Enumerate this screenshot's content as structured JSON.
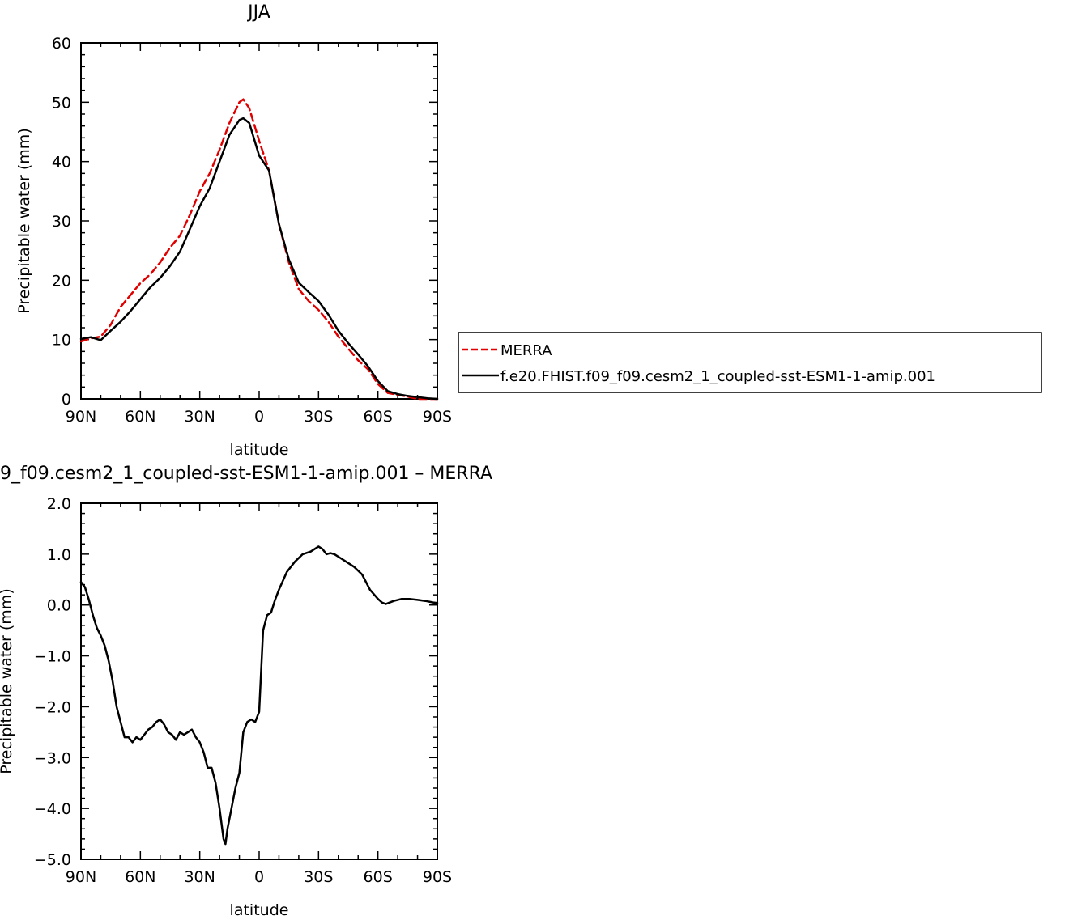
{
  "chart_data": [
    {
      "type": "line",
      "title": "JJA",
      "xlabel": "latitude",
      "ylabel": "Precipitable water (mm)",
      "xlim": [
        90,
        -90
      ],
      "ylim": [
        0,
        60
      ],
      "x_ticks": [
        90,
        60,
        30,
        0,
        -30,
        -60,
        -90
      ],
      "x_tick_labels": [
        "90N",
        "60N",
        "30N",
        "0",
        "30S",
        "60S",
        "90S"
      ],
      "y_ticks": [
        0,
        10,
        20,
        30,
        40,
        50,
        60
      ],
      "y_tick_labels": [
        "0",
        "10",
        "20",
        "30",
        "40",
        "50",
        "60"
      ],
      "legend_position": "outside-right",
      "series": [
        {
          "name": "MERRA",
          "color": "#e00000",
          "dash": "dashed",
          "x": [
            90,
            85,
            80,
            75,
            70,
            65,
            60,
            55,
            50,
            45,
            40,
            35,
            30,
            25,
            20,
            15,
            10,
            8,
            5,
            0,
            -5,
            -10,
            -15,
            -20,
            -25,
            -30,
            -35,
            -40,
            -45,
            -50,
            -55,
            -60,
            -65,
            -70,
            -75,
            -80,
            -85,
            -90
          ],
          "y": [
            9.7,
            10.2,
            10.5,
            12.5,
            15.5,
            17.5,
            19.5,
            21,
            23,
            25.5,
            27.5,
            31,
            35,
            38,
            42,
            46.5,
            50,
            50.5,
            49,
            43.5,
            38.5,
            29.5,
            23,
            18.5,
            16.5,
            15,
            13,
            10.5,
            8.5,
            6.5,
            5,
            2.5,
            1,
            0.7,
            0.4,
            0,
            0,
            0
          ]
        },
        {
          "name": "f.e20.FHIST.f09_f09.cesm2_1_coupled-sst-ESM1-1-amip.001",
          "color": "#000000",
          "dash": "solid",
          "x": [
            90,
            85,
            80,
            75,
            70,
            65,
            60,
            55,
            50,
            45,
            40,
            35,
            30,
            25,
            20,
            15,
            10,
            8,
            5,
            0,
            -5,
            -10,
            -15,
            -20,
            -25,
            -30,
            -35,
            -40,
            -45,
            -50,
            -55,
            -60,
            -65,
            -70,
            -75,
            -80,
            -85,
            -90
          ],
          "y": [
            10.1,
            10.4,
            9.9,
            11.5,
            13,
            14.8,
            16.8,
            18.8,
            20.4,
            22.4,
            24.8,
            28.6,
            32.5,
            35.5,
            40,
            44.5,
            47,
            47.3,
            46.5,
            41,
            38.5,
            29.5,
            23.5,
            19.6,
            18,
            16.5,
            14.2,
            11.5,
            9.4,
            7.5,
            5.5,
            3,
            1.3,
            0.8,
            0.5,
            0.3,
            0.1,
            0
          ]
        }
      ]
    },
    {
      "type": "line",
      "title": "9_f09.cesm2_1_coupled-sst-ESM1-1-amip.001 – MERRA",
      "xlabel": "latitude",
      "ylabel": "Precipitable water (mm)",
      "xlim": [
        90,
        -90
      ],
      "ylim": [
        -5,
        2
      ],
      "x_ticks": [
        90,
        60,
        30,
        0,
        -30,
        -60,
        -90
      ],
      "x_tick_labels": [
        "90N",
        "60N",
        "30N",
        "0",
        "30S",
        "60S",
        "90S"
      ],
      "y_ticks": [
        -5,
        -4,
        -3,
        -2,
        -1,
        0,
        1,
        2
      ],
      "y_tick_labels": [
        "−5.0",
        "−4.0",
        "−3.0",
        "−2.0",
        "−1.0",
        "0.0",
        "1.0",
        "2.0"
      ],
      "series": [
        {
          "name": "",
          "color": "#000000",
          "dash": "solid",
          "x": [
            90,
            88,
            86,
            84,
            82,
            80,
            78,
            76,
            74,
            72,
            70,
            68,
            66,
            64,
            62,
            60,
            58,
            56,
            54,
            52,
            50,
            48,
            46,
            44,
            42,
            40,
            38,
            36,
            34,
            32,
            30,
            28,
            26,
            24,
            22,
            20,
            18,
            17,
            16,
            14,
            12,
            10,
            8,
            6,
            4,
            2,
            0,
            -2,
            -4,
            -6,
            -8,
            -10,
            -14,
            -18,
            -22,
            -26,
            -30,
            -32,
            -34,
            -36,
            -38,
            -40,
            -44,
            -48,
            -52,
            -56,
            -60,
            -62,
            -64,
            -66,
            -68,
            -70,
            -72,
            -76,
            -80,
            -84,
            -88,
            -90
          ],
          "y": [
            0.45,
            0.35,
            0.1,
            -0.2,
            -0.45,
            -0.6,
            -0.8,
            -1.1,
            -1.5,
            -2,
            -2.3,
            -2.6,
            -2.6,
            -2.7,
            -2.6,
            -2.65,
            -2.55,
            -2.45,
            -2.4,
            -2.3,
            -2.25,
            -2.35,
            -2.5,
            -2.55,
            -2.65,
            -2.5,
            -2.55,
            -2.5,
            -2.45,
            -2.6,
            -2.7,
            -2.9,
            -3.2,
            -3.2,
            -3.5,
            -4.0,
            -4.6,
            -4.7,
            -4.4,
            -4.0,
            -3.6,
            -3.3,
            -2.5,
            -2.3,
            -2.25,
            -2.3,
            -2.1,
            -0.5,
            -0.2,
            -0.15,
            0.1,
            0.3,
            0.65,
            0.85,
            1.0,
            1.05,
            1.15,
            1.1,
            1.0,
            1.02,
            1.0,
            0.95,
            0.85,
            0.75,
            0.6,
            0.3,
            0.12,
            0.05,
            0.02,
            0.05,
            0.08,
            0.1,
            0.12,
            0.12,
            0.1,
            0.08,
            0.05,
            0.04
          ]
        }
      ]
    }
  ]
}
